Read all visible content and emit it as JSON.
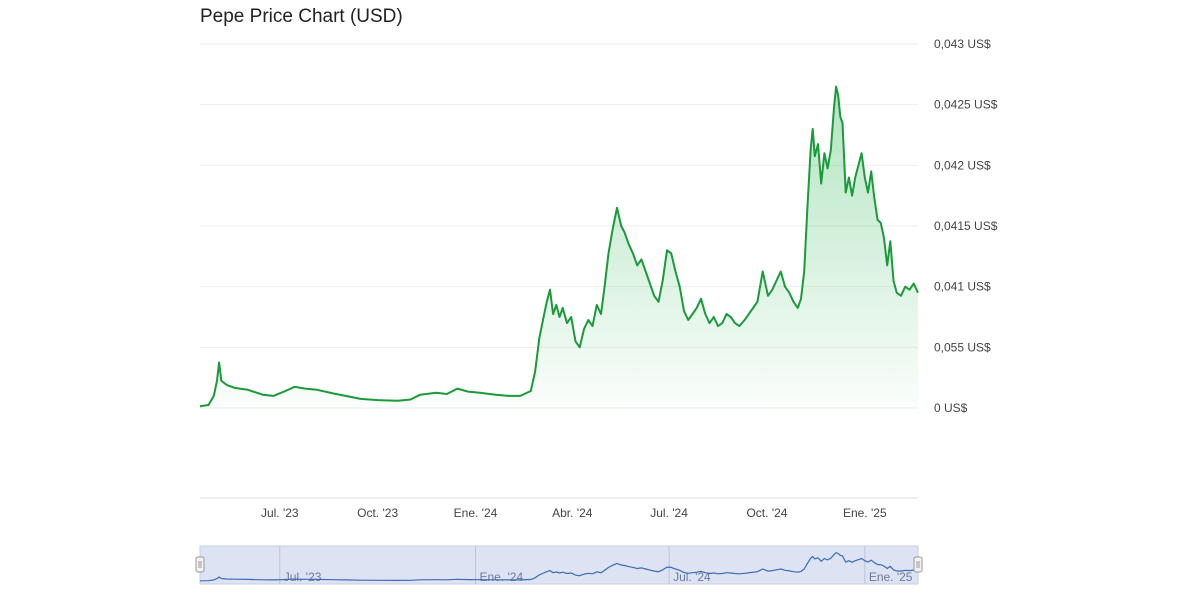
{
  "chart_data": {
    "type": "area",
    "title": "Pepe Price Chart (USD)",
    "y_ticks": [
      {
        "value": 0,
        "label": "0 US$"
      },
      {
        "value": 1,
        "label": "0,055 US$"
      },
      {
        "value": 2,
        "label": "0,041 US$"
      },
      {
        "value": 3,
        "label": "0,0415 US$"
      },
      {
        "value": 4,
        "label": "0,042 US$"
      },
      {
        "value": 5,
        "label": "0,0425 US$"
      },
      {
        "value": 6,
        "label": "0,043 US$"
      }
    ],
    "ylim": [
      0,
      6
    ],
    "x_ticks": [
      {
        "date": "2023-07-01",
        "label": "Jul. '23"
      },
      {
        "date": "2023-10-01",
        "label": "Oct. '23"
      },
      {
        "date": "2024-01-01",
        "label": "Ene. '24"
      },
      {
        "date": "2024-04-01",
        "label": "Abr. '24"
      },
      {
        "date": "2024-07-01",
        "label": "Jul. '24"
      },
      {
        "date": "2024-10-01",
        "label": "Oct. '24"
      },
      {
        "date": "2025-01-01",
        "label": "Ene. '25"
      }
    ],
    "xlim": [
      "2023-04-17",
      "2025-02-20"
    ],
    "series": [
      {
        "points": [
          [
            "2023-04-17",
            0.03
          ],
          [
            "2023-04-25",
            0.05
          ],
          [
            "2023-04-30",
            0.2
          ],
          [
            "2023-05-03",
            0.45
          ],
          [
            "2023-05-05",
            0.75
          ],
          [
            "2023-05-07",
            0.45
          ],
          [
            "2023-05-12",
            0.38
          ],
          [
            "2023-05-20",
            0.33
          ],
          [
            "2023-06-01",
            0.3
          ],
          [
            "2023-06-15",
            0.22
          ],
          [
            "2023-06-25",
            0.2
          ],
          [
            "2023-07-05",
            0.27
          ],
          [
            "2023-07-15",
            0.35
          ],
          [
            "2023-07-25",
            0.32
          ],
          [
            "2023-08-05",
            0.3
          ],
          [
            "2023-08-20",
            0.24
          ],
          [
            "2023-09-01",
            0.2
          ],
          [
            "2023-09-15",
            0.15
          ],
          [
            "2023-10-01",
            0.13
          ],
          [
            "2023-10-20",
            0.12
          ],
          [
            "2023-11-01",
            0.14
          ],
          [
            "2023-11-10",
            0.22
          ],
          [
            "2023-11-25",
            0.25
          ],
          [
            "2023-12-05",
            0.23
          ],
          [
            "2023-12-15",
            0.32
          ],
          [
            "2023-12-25",
            0.27
          ],
          [
            "2024-01-05",
            0.25
          ],
          [
            "2024-01-20",
            0.22
          ],
          [
            "2024-02-01",
            0.2
          ],
          [
            "2024-02-12",
            0.2
          ],
          [
            "2024-02-22",
            0.28
          ],
          [
            "2024-02-26",
            0.6
          ],
          [
            "2024-03-01",
            1.15
          ],
          [
            "2024-03-05",
            1.5
          ],
          [
            "2024-03-08",
            1.75
          ],
          [
            "2024-03-11",
            1.95
          ],
          [
            "2024-03-14",
            1.55
          ],
          [
            "2024-03-17",
            1.7
          ],
          [
            "2024-03-20",
            1.5
          ],
          [
            "2024-03-23",
            1.65
          ],
          [
            "2024-03-27",
            1.4
          ],
          [
            "2024-03-31",
            1.5
          ],
          [
            "2024-04-04",
            1.1
          ],
          [
            "2024-04-08",
            1.0
          ],
          [
            "2024-04-12",
            1.3
          ],
          [
            "2024-04-16",
            1.45
          ],
          [
            "2024-04-20",
            1.35
          ],
          [
            "2024-04-24",
            1.7
          ],
          [
            "2024-04-28",
            1.55
          ],
          [
            "2024-05-01",
            1.95
          ],
          [
            "2024-05-05",
            2.55
          ],
          [
            "2024-05-09",
            2.95
          ],
          [
            "2024-05-13",
            3.3
          ],
          [
            "2024-05-17",
            3.0
          ],
          [
            "2024-05-20",
            2.9
          ],
          [
            "2024-05-24",
            2.7
          ],
          [
            "2024-05-28",
            2.55
          ],
          [
            "2024-06-01",
            2.35
          ],
          [
            "2024-06-05",
            2.45
          ],
          [
            "2024-06-09",
            2.25
          ],
          [
            "2024-06-13",
            2.05
          ],
          [
            "2024-06-17",
            1.85
          ],
          [
            "2024-06-21",
            1.75
          ],
          [
            "2024-06-25",
            2.1
          ],
          [
            "2024-06-29",
            2.6
          ],
          [
            "2024-07-03",
            2.55
          ],
          [
            "2024-07-07",
            2.25
          ],
          [
            "2024-07-11",
            2.0
          ],
          [
            "2024-07-15",
            1.6
          ],
          [
            "2024-07-19",
            1.45
          ],
          [
            "2024-07-23",
            1.55
          ],
          [
            "2024-07-27",
            1.65
          ],
          [
            "2024-07-31",
            1.8
          ],
          [
            "2024-08-04",
            1.55
          ],
          [
            "2024-08-08",
            1.4
          ],
          [
            "2024-08-12",
            1.5
          ],
          [
            "2024-08-16",
            1.35
          ],
          [
            "2024-08-20",
            1.4
          ],
          [
            "2024-08-24",
            1.55
          ],
          [
            "2024-08-28",
            1.5
          ],
          [
            "2024-09-01",
            1.4
          ],
          [
            "2024-09-05",
            1.35
          ],
          [
            "2024-09-10",
            1.45
          ],
          [
            "2024-09-16",
            1.6
          ],
          [
            "2024-09-22",
            1.75
          ],
          [
            "2024-09-27",
            2.25
          ],
          [
            "2024-10-02",
            1.85
          ],
          [
            "2024-10-06",
            1.95
          ],
          [
            "2024-10-10",
            2.1
          ],
          [
            "2024-10-14",
            2.25
          ],
          [
            "2024-10-18",
            2.0
          ],
          [
            "2024-10-22",
            1.9
          ],
          [
            "2024-10-26",
            1.75
          ],
          [
            "2024-10-30",
            1.65
          ],
          [
            "2024-11-02",
            1.8
          ],
          [
            "2024-11-05",
            2.25
          ],
          [
            "2024-11-08",
            3.3
          ],
          [
            "2024-11-11",
            4.25
          ],
          [
            "2024-11-13",
            4.6
          ],
          [
            "2024-11-15",
            4.15
          ],
          [
            "2024-11-18",
            4.35
          ],
          [
            "2024-11-21",
            3.7
          ],
          [
            "2024-11-24",
            4.2
          ],
          [
            "2024-11-27",
            3.95
          ],
          [
            "2024-11-30",
            4.25
          ],
          [
            "2024-12-03",
            4.95
          ],
          [
            "2024-12-05",
            5.3
          ],
          [
            "2024-12-07",
            5.15
          ],
          [
            "2024-12-09",
            4.8
          ],
          [
            "2024-12-11",
            4.7
          ],
          [
            "2024-12-14",
            3.55
          ],
          [
            "2024-12-17",
            3.8
          ],
          [
            "2024-12-20",
            3.5
          ],
          [
            "2024-12-23",
            3.8
          ],
          [
            "2024-12-26",
            4.0
          ],
          [
            "2024-12-29",
            4.2
          ],
          [
            "2025-01-01",
            3.8
          ],
          [
            "2025-01-04",
            3.55
          ],
          [
            "2025-01-07",
            3.9
          ],
          [
            "2025-01-10",
            3.45
          ],
          [
            "2025-01-13",
            3.1
          ],
          [
            "2025-01-16",
            3.05
          ],
          [
            "2025-01-19",
            2.8
          ],
          [
            "2025-01-22",
            2.35
          ],
          [
            "2025-01-25",
            2.75
          ],
          [
            "2025-01-28",
            2.1
          ],
          [
            "2025-01-31",
            1.9
          ],
          [
            "2025-02-04",
            1.85
          ],
          [
            "2025-02-08",
            2.0
          ],
          [
            "2025-02-12",
            1.95
          ],
          [
            "2025-02-16",
            2.05
          ],
          [
            "2025-02-20",
            1.9
          ]
        ]
      }
    ],
    "navigator_labels": [
      {
        "date": "2023-07-01",
        "label": "Jul. '23"
      },
      {
        "date": "2024-01-01",
        "label": "Ene. '24"
      },
      {
        "date": "2024-07-01",
        "label": "Jul. '24"
      },
      {
        "date": "2025-01-01",
        "label": "Ene. '25"
      }
    ],
    "colors": {
      "line": "#1a9a3a",
      "area_top": "#22b24c",
      "gridline": "#eeeeee",
      "navigator_fill": "#dde3f3",
      "navigator_line": "#3b6cb4"
    },
    "grid": true
  }
}
